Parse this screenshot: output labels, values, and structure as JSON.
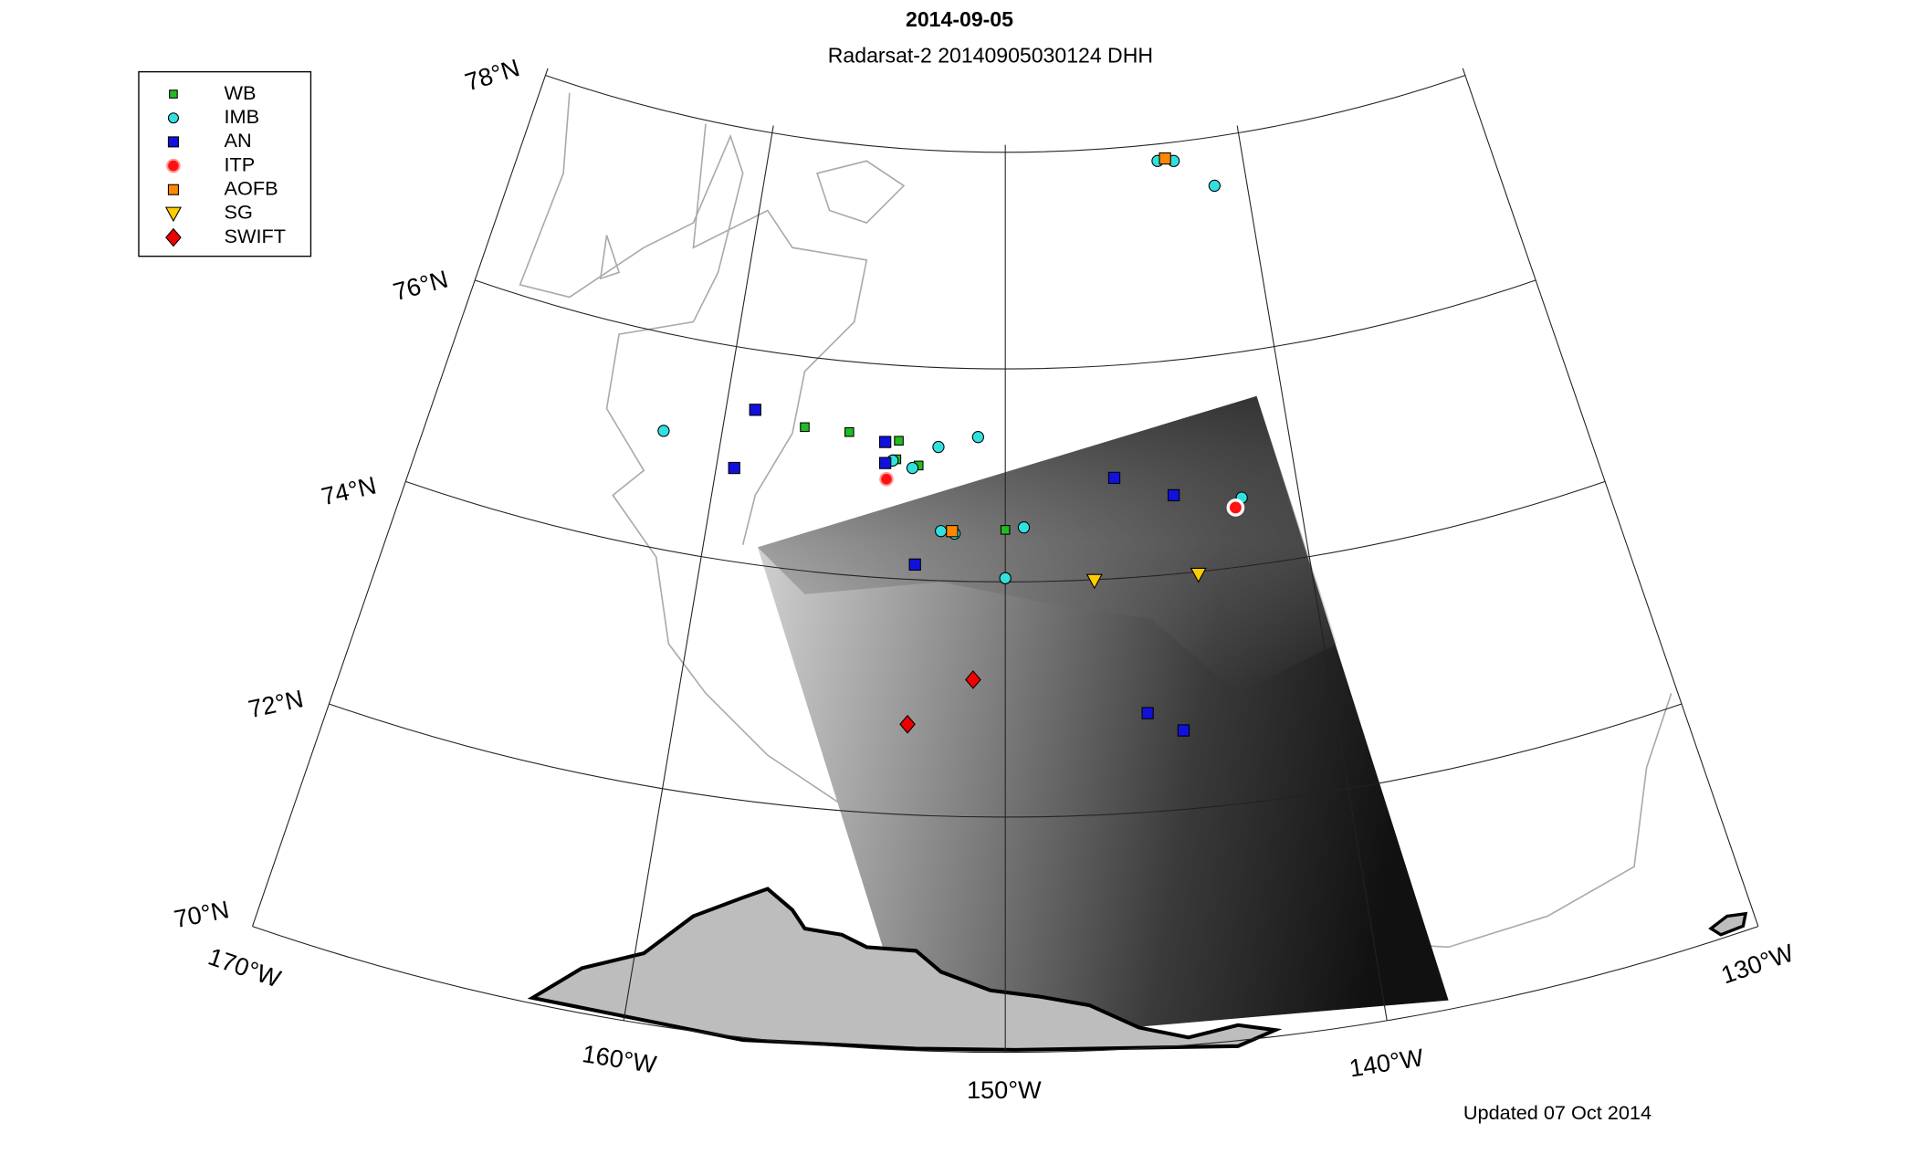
{
  "header": {
    "title": "2014-09-05",
    "subtitle": "Radarsat-2 20140905030124 DHH"
  },
  "legend": {
    "items": [
      {
        "label": "WB"
      },
      {
        "label": "IMB"
      },
      {
        "label": "AN"
      },
      {
        "label": "ITP"
      },
      {
        "label": "AOFB"
      },
      {
        "label": "SG"
      },
      {
        "label": "SWIFT"
      }
    ]
  },
  "graticule": {
    "latitude_labels": [
      "78°N",
      "76°N",
      "74°N",
      "72°N",
      "70°N"
    ],
    "longitude_labels": [
      "170°W",
      "160°W",
      "150°W",
      "140°W",
      "130°W"
    ]
  },
  "footer": "Updated 07 Oct 2014"
}
